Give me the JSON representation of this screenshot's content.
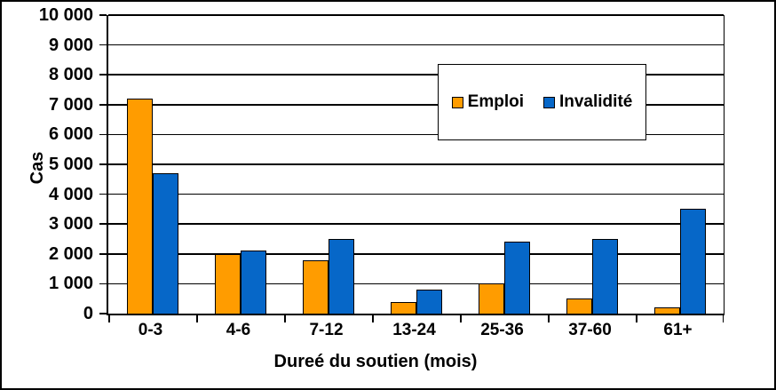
{
  "figure": {
    "background": "#FFFFFF",
    "border_color": "#000000"
  },
  "chart_data": {
    "type": "bar",
    "title": "",
    "categories": [
      "0-3",
      "4-6",
      "7-12",
      "13-24",
      "25-36",
      "37-60",
      "61+"
    ],
    "series": [
      {
        "name": "Emploi",
        "color": "#FF9C00",
        "values": [
          7200,
          2000,
          1800,
          400,
          1000,
          500,
          200
        ]
      },
      {
        "name": "Invalidité",
        "color": "#0667C8",
        "values": [
          4700,
          2100,
          2500,
          800,
          2400,
          2500,
          3500
        ]
      }
    ],
    "xlabel": "Dureé du soutien (mois)",
    "ylabel": "Cas",
    "ylim": [
      0,
      10000
    ],
    "ytick_step": 1000,
    "ytick_labels": [
      "0",
      "1 000",
      "2 000",
      "3 000",
      "4 000",
      "5 000",
      "6 000",
      "7 000",
      "8 000",
      "9 000",
      "10 000"
    ],
    "grid": "horizontal",
    "legend_position": "inside-top-right",
    "gridline_color": "#000000",
    "bar_border_color": "#000000"
  }
}
